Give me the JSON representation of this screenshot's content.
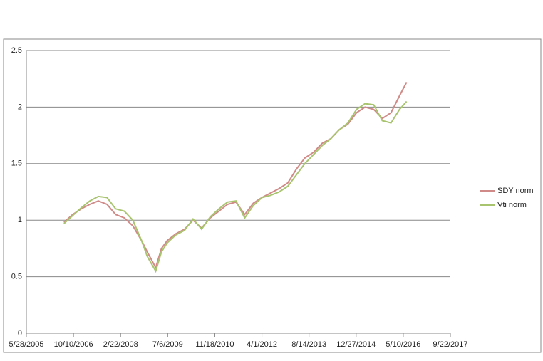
{
  "chart_data": {
    "type": "line",
    "x": [
      "2006-07-01",
      "2006-10-01",
      "2007-01-01",
      "2007-04-01",
      "2007-07-01",
      "2007-10-01",
      "2008-01-01",
      "2008-04-01",
      "2008-07-01",
      "2008-10-01",
      "2008-12-01",
      "2009-03-01",
      "2009-05-01",
      "2009-07-01",
      "2009-10-01",
      "2010-01-01",
      "2010-04-01",
      "2010-07-01",
      "2010-10-01",
      "2011-01-01",
      "2011-04-01",
      "2011-07-01",
      "2011-10-01",
      "2012-01-01",
      "2012-04-01",
      "2012-07-01",
      "2012-10-01",
      "2013-01-01",
      "2013-04-01",
      "2013-07-01",
      "2013-10-01",
      "2014-01-01",
      "2014-04-01",
      "2014-07-01",
      "2014-10-01",
      "2015-01-01",
      "2015-04-01",
      "2015-07-01",
      "2015-10-01",
      "2016-01-01",
      "2016-04-01",
      "2016-06-15"
    ],
    "series": [
      {
        "name": "SDY norm",
        "color": "#d08a87",
        "values": [
          0.98,
          1.05,
          1.1,
          1.14,
          1.17,
          1.14,
          1.05,
          1.02,
          0.95,
          0.82,
          0.72,
          0.58,
          0.75,
          0.82,
          0.88,
          0.92,
          1.0,
          0.93,
          1.02,
          1.08,
          1.14,
          1.16,
          1.05,
          1.15,
          1.2,
          1.24,
          1.28,
          1.33,
          1.45,
          1.55,
          1.6,
          1.68,
          1.72,
          1.8,
          1.85,
          1.95,
          2.0,
          1.98,
          1.9,
          1.95,
          2.1,
          2.22
        ]
      },
      {
        "name": "Vti norm",
        "color": "#a8c46f",
        "values": [
          0.97,
          1.04,
          1.11,
          1.17,
          1.21,
          1.2,
          1.1,
          1.08,
          1.0,
          0.82,
          0.68,
          0.55,
          0.72,
          0.8,
          0.87,
          0.91,
          1.01,
          0.92,
          1.03,
          1.1,
          1.16,
          1.17,
          1.02,
          1.13,
          1.2,
          1.22,
          1.25,
          1.3,
          1.4,
          1.5,
          1.58,
          1.66,
          1.72,
          1.8,
          1.86,
          1.98,
          2.03,
          2.02,
          1.88,
          1.86,
          1.98,
          2.05
        ]
      }
    ],
    "xlim": [
      "2005-05-28",
      "2017-09-22"
    ],
    "xticks": [
      "5/28/2005",
      "10/10/2006",
      "2/22/2008",
      "7/6/2009",
      "11/18/2010",
      "4/1/2012",
      "8/14/2013",
      "12/27/2014",
      "5/10/2016",
      "9/22/2017"
    ],
    "ylim": [
      0,
      2.5
    ],
    "yticks": [
      0,
      0.5,
      1,
      1.5,
      2,
      2.5
    ],
    "grid": true,
    "legend": "right"
  }
}
